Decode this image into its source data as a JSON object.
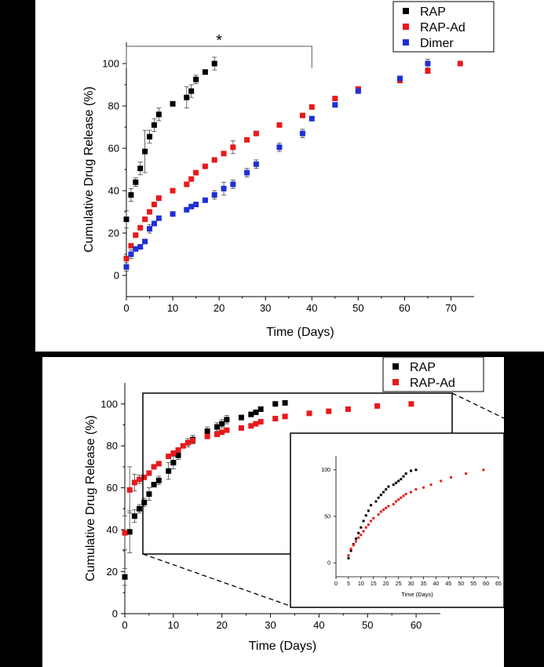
{
  "chart_data": [
    {
      "type": "scatter",
      "xlabel": "Time (Days)",
      "ylabel": "Cumulative Drug Release (%)",
      "xlim": [
        0,
        75
      ],
      "ylim": [
        -10,
        110
      ],
      "xticks": [
        0,
        10,
        20,
        30,
        40,
        50,
        60,
        70
      ],
      "yticks": [
        0,
        20,
        40,
        60,
        80,
        100
      ],
      "legend_position": "top-right",
      "annotation": "*",
      "annotation_bracket_x": [
        0,
        40
      ],
      "series": [
        {
          "name": "RAP",
          "color": "#000000",
          "x": [
            0,
            1,
            2,
            3,
            4,
            5,
            6,
            7,
            10,
            13,
            14,
            15,
            17,
            19
          ],
          "y": [
            26.5,
            38,
            44,
            50.5,
            58.5,
            65.5,
            71,
            76,
            81,
            84,
            87,
            92.5,
            96,
            100
          ],
          "err": [
            4,
            3,
            2,
            3,
            10,
            3,
            3,
            3,
            1,
            5,
            3,
            2,
            1,
            3
          ]
        },
        {
          "name": "RAP-Ad",
          "color": "#e8191c",
          "x": [
            0,
            1,
            2,
            3,
            4,
            5,
            6,
            7,
            10,
            13,
            14,
            15,
            17,
            19,
            21,
            23,
            26,
            28,
            33,
            38,
            40,
            45,
            50,
            59,
            65,
            72
          ],
          "y": [
            8,
            14,
            19,
            22.5,
            26.5,
            30,
            33.5,
            36.5,
            40,
            43,
            45.5,
            48.5,
            51.5,
            54.5,
            57.5,
            60.5,
            64,
            67,
            71,
            75.5,
            79.5,
            83.5,
            88,
            92,
            96.5,
            100
          ],
          "err": [
            1,
            1,
            1,
            1,
            1,
            1,
            1,
            1,
            1,
            1,
            1,
            1,
            1,
            1,
            1,
            3,
            1,
            1,
            1,
            1,
            1,
            1,
            1,
            1,
            1,
            1
          ]
        },
        {
          "name": "Dimer",
          "color": "#1f2fd6",
          "x": [
            0,
            1,
            2,
            3,
            4,
            5,
            6,
            7,
            10,
            13,
            14,
            15,
            17,
            19,
            21,
            23,
            26,
            28,
            33,
            38,
            40,
            45,
            50,
            59,
            65
          ],
          "y": [
            4,
            10,
            12.5,
            13.5,
            16,
            22,
            24.5,
            27,
            29,
            31,
            32.5,
            33.5,
            35.5,
            38,
            41,
            43,
            48.5,
            52.5,
            60.5,
            67,
            74,
            80.5,
            87,
            93,
            100
          ],
          "err": [
            2,
            2,
            1,
            1,
            1,
            2,
            1,
            1,
            1,
            1,
            1,
            1,
            1,
            2,
            3,
            2,
            2,
            2,
            2,
            2,
            1,
            1,
            1,
            1,
            2
          ]
        }
      ]
    },
    {
      "type": "scatter",
      "xlabel": "Time (Days)",
      "ylabel": "Cumulative Drug Release (%)",
      "xlim": [
        0,
        65
      ],
      "ylim": [
        0,
        110
      ],
      "xticks": [
        0,
        10,
        20,
        30,
        40,
        50,
        60
      ],
      "yticks": [
        0,
        20,
        40,
        60,
        80,
        100
      ],
      "legend_position": "top-right",
      "series": [
        {
          "name": "RAP",
          "color": "#000000",
          "x": [
            0,
            1,
            2,
            3,
            4,
            5,
            6,
            7,
            9,
            10,
            11,
            13,
            14,
            17,
            19,
            20,
            21,
            24,
            26,
            27,
            28,
            31,
            33
          ],
          "y": [
            17.5,
            39,
            46.5,
            50,
            53,
            57,
            61.5,
            63.5,
            68,
            72,
            75.5,
            81.5,
            83,
            87,
            89,
            90.5,
            92.5,
            93.5,
            95,
            96,
            97.5,
            100,
            100.5
          ],
          "err": [
            4,
            10,
            3,
            2,
            2,
            3,
            1,
            2,
            4,
            3,
            2,
            2,
            2,
            2,
            2,
            2,
            2,
            1,
            1,
            1,
            1,
            1,
            1
          ]
        },
        {
          "name": "RAP-Ad",
          "color": "#e8191c",
          "x": [
            0,
            1,
            2,
            3,
            4,
            5,
            6,
            7,
            9,
            10,
            11,
            12,
            13,
            14,
            17,
            19,
            20,
            21,
            24,
            26,
            27,
            28,
            31,
            33,
            38,
            42,
            46,
            52,
            59
          ],
          "y": [
            38.5,
            59,
            62.5,
            64,
            65,
            67,
            70,
            71.5,
            75,
            76.5,
            78,
            80,
            81.5,
            82.5,
            84.5,
            85.5,
            86.5,
            87.5,
            88.5,
            89.5,
            90.5,
            91.5,
            93,
            94,
            95.5,
            96.5,
            97.5,
            99,
            100
          ],
          "err": [
            8,
            11,
            4,
            2,
            1,
            1,
            1,
            1,
            1,
            1,
            1,
            1,
            1,
            1,
            1,
            1,
            1,
            1,
            1,
            1,
            1,
            1,
            1,
            1,
            1,
            1,
            1,
            1,
            1
          ]
        }
      ]
    },
    {
      "type": "scatter",
      "xlabel": "Time (Days)",
      "ylabel": "",
      "xlim": [
        0,
        65
      ],
      "ylim": [
        -15,
        115
      ],
      "xticks": [
        0,
        5,
        10,
        15,
        20,
        25,
        30,
        35,
        40,
        45,
        50,
        55,
        60,
        65
      ],
      "yticks": [
        0,
        50,
        100
      ],
      "series": [
        {
          "name": "RAP",
          "color": "#000000",
          "x": [
            5,
            6,
            7,
            8,
            9,
            10,
            11,
            12,
            13,
            14,
            16,
            17,
            18,
            19,
            20,
            21,
            23,
            24,
            25,
            26,
            27,
            28,
            30,
            32
          ],
          "y": [
            5,
            13,
            20,
            26,
            32,
            38,
            45,
            51,
            56,
            62,
            66,
            70,
            73,
            76,
            79,
            82,
            84,
            86,
            88,
            90,
            93,
            96,
            99,
            100
          ],
          "err": []
        },
        {
          "name": "RAP-Ad",
          "color": "#e8191c",
          "x": [
            5,
            6,
            7,
            8,
            9,
            10,
            11,
            12,
            13,
            14,
            15,
            17,
            18,
            19,
            20,
            21,
            23,
            24,
            25,
            26,
            27,
            28,
            30,
            32,
            35,
            38,
            42,
            46,
            52,
            59
          ],
          "y": [
            8,
            15,
            19,
            23,
            27,
            30,
            34,
            38,
            41,
            45,
            48,
            52,
            55,
            57,
            59,
            61,
            63,
            66,
            68,
            70,
            72,
            74,
            76,
            79,
            81,
            84,
            88,
            92,
            96,
            100
          ],
          "err": []
        }
      ]
    }
  ],
  "legend_a": [
    "RAP",
    "RAP-Ad",
    "Dimer"
  ],
  "legend_b": [
    "RAP",
    "RAP-Ad"
  ]
}
